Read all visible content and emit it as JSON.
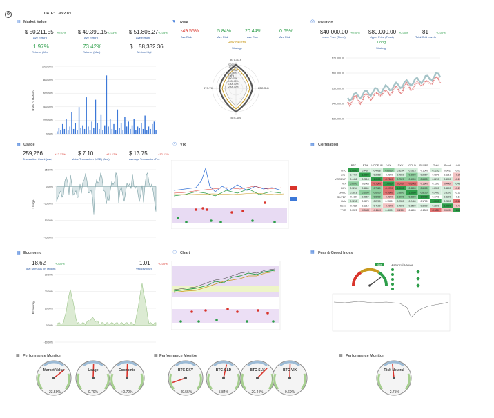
{
  "header": {
    "date_label": "DATE:",
    "date_value": "3/3/2021"
  },
  "colors": {
    "blue": "#3c78d8",
    "green": "#2e9e4a",
    "red": "#d9342b",
    "gold": "#c89a1e",
    "teal": "#a6c4c8",
    "pink": "#e58a8a"
  },
  "market_value": {
    "title": "Market Value",
    "stats": [
      {
        "value": "$   50,211.55",
        "change": "+0.03%",
        "label": "Ave Return"
      },
      {
        "value": "$   49,390.15",
        "change": "+0.03%",
        "label": "Ave Return"
      },
      {
        "value": "$   51,806.27",
        "change": "+0.03%",
        "label": "Ave Return"
      }
    ],
    "stats2": [
      {
        "value": "1.97%",
        "label": "Returns (Min)"
      },
      {
        "value": "73.42%",
        "label": "Returns (Max)"
      },
      {
        "value": "$",
        "value2": "58,332.36",
        "label": "All-time High"
      }
    ],
    "ylabel": "Rate of Return",
    "yticks": [
      "1000.00%",
      "800.00%",
      "600.00%",
      "400.00%",
      "200.00%",
      "0.00%"
    ]
  },
  "risk": {
    "title": "Risk",
    "stats": [
      {
        "value": "-49.55%",
        "label": "Ave Risk",
        "color": "red"
      },
      {
        "value": "5.84%",
        "label": "Ave Risk",
        "color": "green"
      },
      {
        "value": "20.44%",
        "label": "Ave Risk",
        "color": "green"
      },
      {
        "value": "0.69%",
        "label": "Ave Risk",
        "color": "green"
      }
    ],
    "center_label": "Risk Neutral",
    "center_sub": "Strategy",
    "radar_ticks": [
      "2000.00%",
      "1500.00%",
      "1000.00%",
      "500.00%",
      "0.00%",
      "-500.00%",
      "-1000.00%",
      "-1500.00%",
      "-2000.00%"
    ],
    "axes": [
      "BTC-DXY",
      "BTC-GLD",
      "BTC-SLV",
      "BTC-VIX"
    ]
  },
  "position": {
    "title": "Position",
    "stats": [
      {
        "value": "$40,000.00",
        "change": "+0.00%",
        "label": "Lower Price (Fixed)"
      },
      {
        "value": "$80,000.00",
        "change": "+0.00%",
        "label": "Upper Price (Fixed)"
      },
      {
        "value": "81",
        "change": "+0.00%",
        "label": "Total Grid Levels"
      }
    ],
    "center_label": "Long",
    "center_sub": "Strategy",
    "yticks": [
      "$70,000.00",
      "$60,000.00",
      "$50,000.00",
      "$40,000.00",
      "$30,000.00"
    ]
  },
  "usage": {
    "title": "Usage",
    "stats": [
      {
        "value": "259,266",
        "change": "+12.12%",
        "label": "Transaction Count (Ave)"
      },
      {
        "value": "$         7.10",
        "change": "+12.12%",
        "label": "Value Transaction (USD) (Ave)"
      },
      {
        "value": "$       13.75",
        "change": "+12.12%",
        "label": "Average Transaction Fee"
      }
    ],
    "ylabel": "Usage",
    "yticks": [
      "25.00%",
      "0.00%",
      "-25.00%",
      "-50.00%",
      "-75.00%"
    ]
  },
  "vix": {
    "title": "Vix"
  },
  "correlation": {
    "title": "Correlation",
    "headers": [
      "BTC",
      "ETH",
      "VOOEUR",
      "VIX",
      "DXY",
      "GOLD",
      "SILVER",
      "Gold",
      "Bond",
      "^VVD"
    ],
    "rows": [
      {
        "name": "BTC",
        "cells": [
          "1.0000",
          "0.4467",
          "0.4468",
          "0.6000",
          "0.3264",
          "0.2818",
          "-0.1000",
          "0.3265",
          "-0.0015",
          "0.0325"
        ]
      },
      {
        "name": "ETH",
        "cells": [
          "0.4467",
          "1.0000",
          "0.2818",
          "-0.2000",
          "0.4860",
          "0.6000",
          "0.2867",
          "0.0870",
          "0.1210",
          "-0.3500"
        ]
      },
      {
        "name": "VOOEUR",
        "cells": [
          "0.4468",
          "0.2818",
          "1.0000",
          "-0.7600",
          "0.7520",
          "0.6000",
          "0.6400",
          "0.2200",
          "0.4100",
          "-0.2400"
        ]
      },
      {
        "name": "VIX",
        "cells": [
          "0.6000",
          "-0.2000",
          "-0.7600",
          "1.0000",
          "-0.5720",
          "-0.6900",
          "-0.2960",
          "0.1300",
          "-0.4000",
          "0.4800"
        ]
      },
      {
        "name": "DXY",
        "cells": [
          "0.3264",
          "0.4860",
          "0.7520",
          "-0.5720",
          "1.0000",
          "0.8800",
          "0.6000",
          "0.2300",
          "0.4800",
          "-0.2500"
        ]
      },
      {
        "name": "GOLD",
        "cells": [
          "0.2818",
          "0.6000",
          "0.6000",
          "-0.6900",
          "0.8800",
          "1.0000",
          "0.8100",
          "0.2460",
          "0.3500",
          "0.1200"
        ]
      },
      {
        "name": "SILVER",
        "cells": [
          "-0.1000",
          "0.2867",
          "0.6400",
          "-0.2960",
          "0.6000",
          "0.8100",
          "1.0000",
          "0.1700",
          "0.3200",
          "-0.1000"
        ]
      },
      {
        "name": "Gold",
        "cells": [
          "0.3265",
          "0.0870",
          "0.2200",
          "0.1300",
          "0.2300",
          "0.2460",
          "0.1700",
          "1.0000",
          "0.2800",
          "-0.6000"
        ]
      },
      {
        "name": "Bond",
        "cells": [
          "-0.0015",
          "0.1210",
          "0.4100",
          "-0.4000",
          "0.4800",
          "0.3500",
          "0.3200",
          "0.2800",
          "1.0000",
          "-0.4200"
        ]
      },
      {
        "name": "^VVD",
        "cells": [
          "0.0325",
          "-0.3500",
          "-0.2400",
          "0.4800",
          "-0.2500",
          "0.1200",
          "-0.1000",
          "-0.6000",
          "-0.4200",
          "1.0000"
        ]
      }
    ]
  },
  "economic": {
    "title": "Economic",
    "stats": [
      {
        "value": "18.62",
        "change": "+0.00%",
        "label": "Total Stimulus (in Trillion)"
      },
      {
        "value": "1.01",
        "change": "+0.00%",
        "label": "Velocity (M2)"
      }
    ],
    "ylabel": "Economy",
    "yticks": [
      "30.00%",
      "20.00%",
      "10.00%",
      "0.00%",
      "-10.00%"
    ]
  },
  "chart": {
    "title": "Chart"
  },
  "fear_greed": {
    "title": "Fear & Greed Index",
    "legend_title": "Historical Values",
    "now_label": "Now"
  },
  "performance": [
    {
      "title": "Performance Monitor",
      "gauges": [
        {
          "name": "Market Value",
          "value": "+23.59%"
        },
        {
          "name": "Usage",
          "value": "0.79%"
        },
        {
          "name": "Economic",
          "value": "+0.72%"
        }
      ]
    },
    {
      "title": "Performance Monitor",
      "gauges": [
        {
          "name": "BTC-DXY",
          "value": "-49.55%"
        },
        {
          "name": "BTC-GLD",
          "value": "5.84%"
        },
        {
          "name": "BTC-SLV",
          "value": "20.44%"
        },
        {
          "name": "BTC-VIX",
          "value": "0.69%"
        }
      ]
    },
    {
      "title": "Performance Monitor",
      "gauges": [
        {
          "name": "Risk Neutral",
          "value": "-2.75%"
        }
      ]
    }
  ]
}
